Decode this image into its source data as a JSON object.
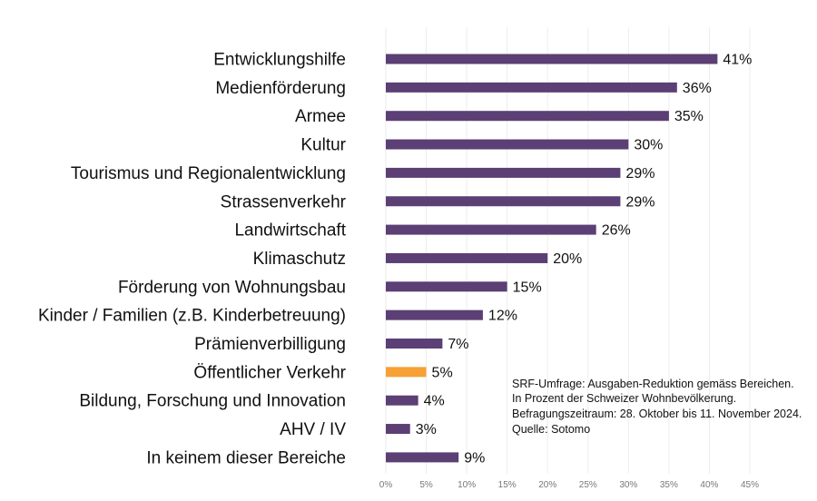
{
  "chart_data": {
    "type": "bar",
    "orientation": "horizontal",
    "categories": [
      "Entwicklungshilfe",
      "Medienförderung",
      "Armee",
      "Kultur",
      "Tourismus und Regionalentwicklung",
      "Strassenverkehr",
      "Landwirtschaft",
      "Klimaschutz",
      "Förderung von Wohnungsbau",
      "Kinder / Familien (z.B. Kinderbetreuung)",
      "Prämienverbilligung",
      "Öffentlicher Verkehr",
      "Bildung, Forschung und Innovation",
      "AHV / IV",
      "In keinem dieser Bereiche"
    ],
    "values": [
      41,
      36,
      35,
      30,
      29,
      29,
      26,
      20,
      15,
      12,
      7,
      5,
      4,
      3,
      9
    ],
    "value_labels": [
      "41%",
      "36%",
      "35%",
      "30%",
      "29%",
      "29%",
      "26%",
      "20%",
      "15%",
      "12%",
      "7%",
      "5%",
      "4%",
      "3%",
      "9%"
    ],
    "highlight_index": 11,
    "colors": {
      "default": "#5b3f75",
      "highlight": "#f7a035"
    },
    "xlim": [
      0,
      45
    ],
    "xticks": [
      "0%",
      "5%",
      "10%",
      "15%",
      "20%",
      "25%",
      "30%",
      "35%",
      "40%",
      "45%"
    ],
    "grid": true,
    "annotation": [
      "SRF-Umfrage: Ausgaben-Reduktion gemäss Bereichen.",
      "In Prozent der Schweizer Wohnbevölkerung.",
      "Befragungszeitraum: 28. Oktober bis 11. November 2024.",
      "Quelle: Sotomo"
    ]
  }
}
